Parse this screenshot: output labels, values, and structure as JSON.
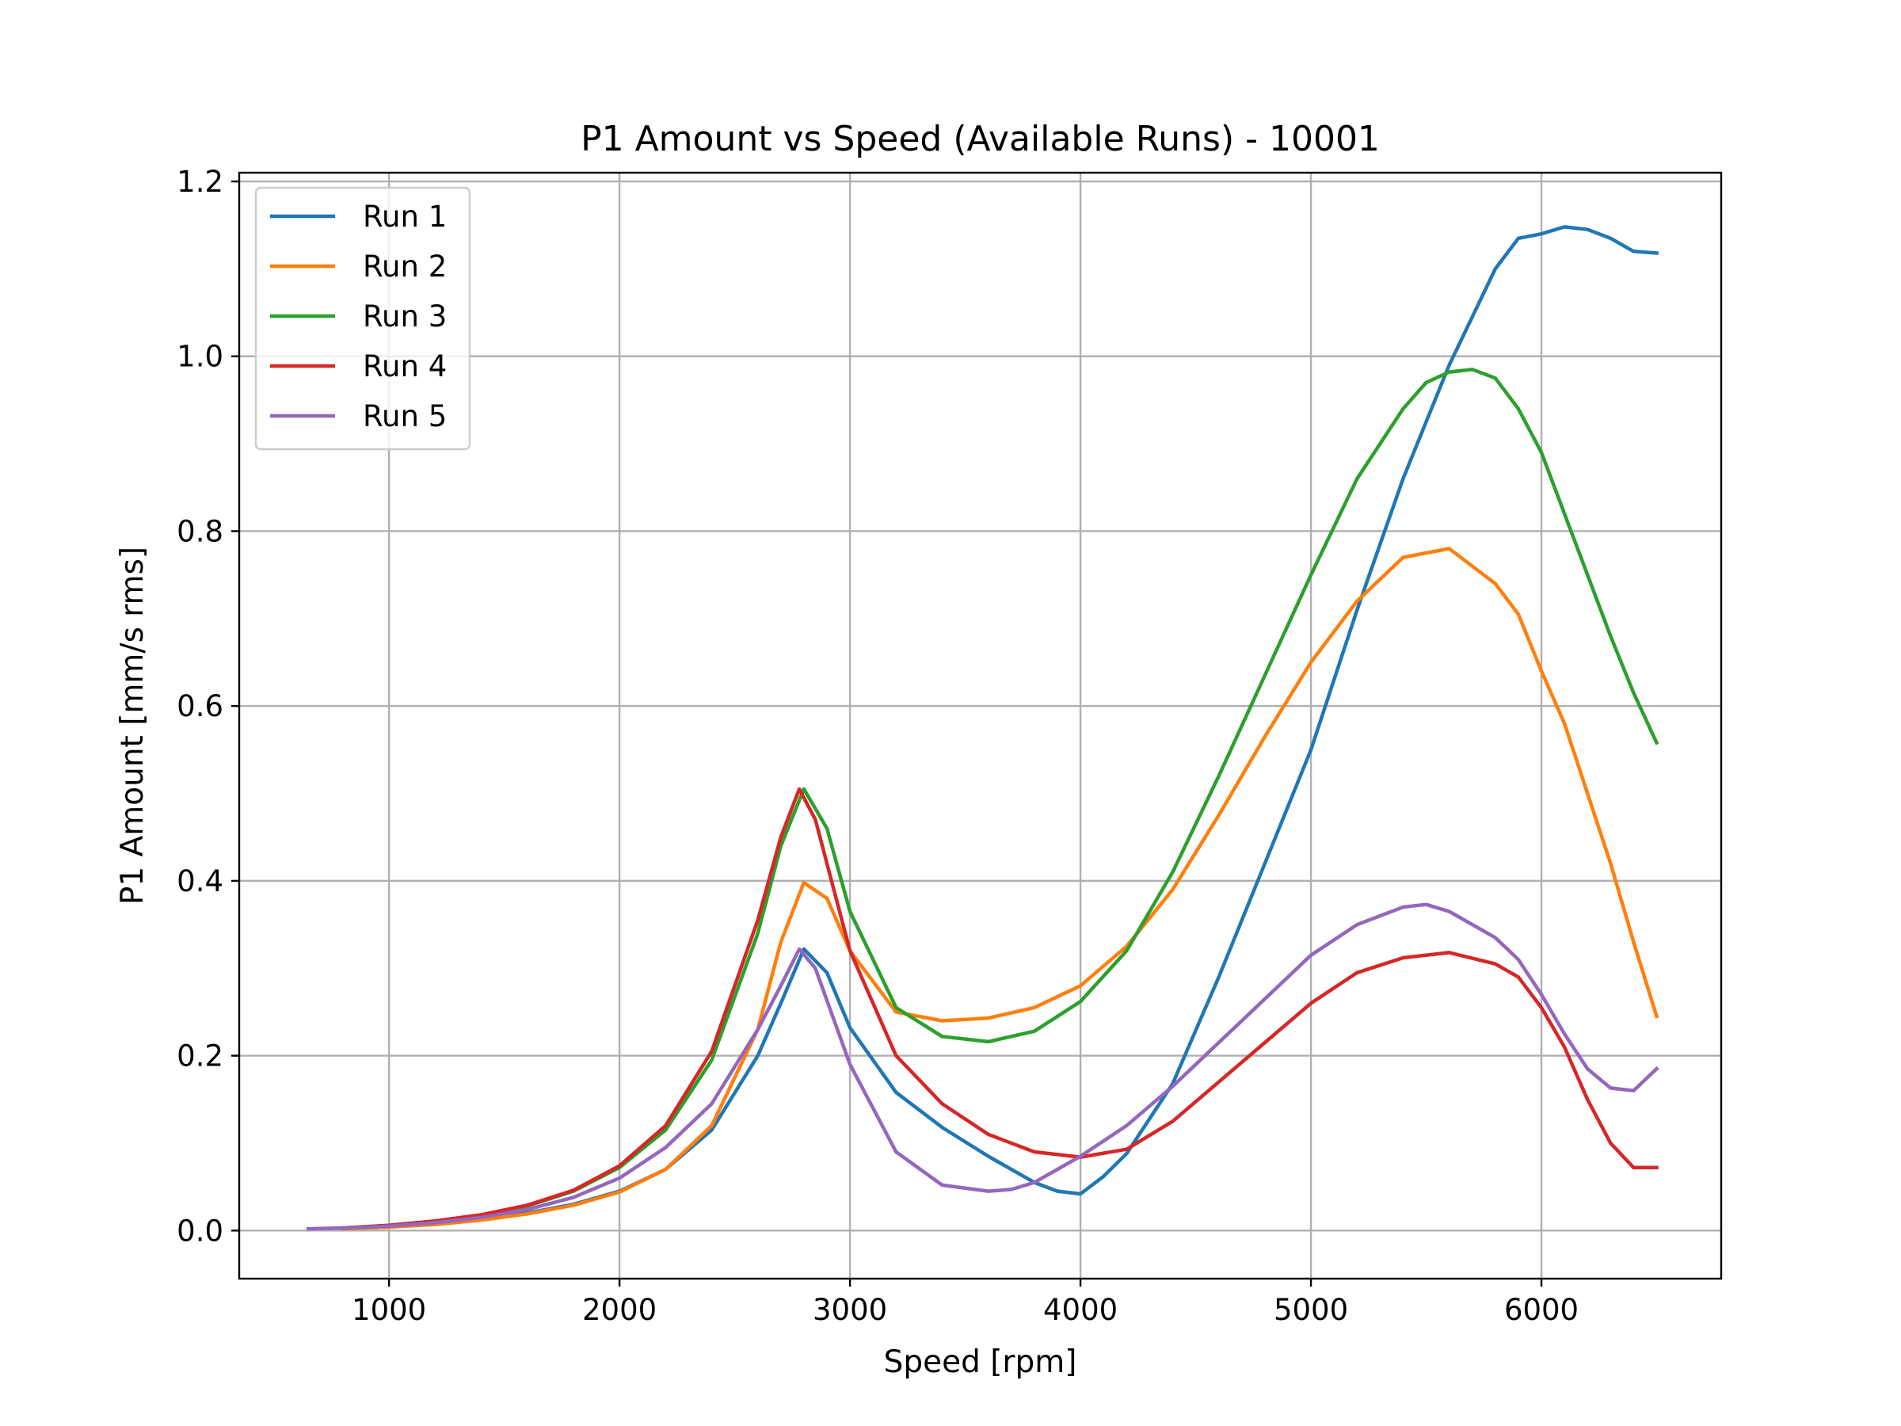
{
  "chart_data": {
    "type": "line",
    "title": "P1 Amount vs Speed (Available Runs) - 10001",
    "xlabel": "Speed [rpm]",
    "ylabel": "P1 Amount [mm/s rms]",
    "xlim": [
      350,
      6780
    ],
    "ylim": [
      -0.055,
      1.21
    ],
    "xticks": [
      1000,
      2000,
      3000,
      4000,
      5000,
      6000
    ],
    "yticks": [
      0.0,
      0.2,
      0.4,
      0.6,
      0.8,
      1.0,
      1.2
    ],
    "xtick_labels": [
      "1000",
      "2000",
      "3000",
      "4000",
      "5000",
      "6000"
    ],
    "ytick_labels": [
      "0.0",
      "0.2",
      "0.4",
      "0.6",
      "0.8",
      "1.0",
      "1.2"
    ],
    "grid": true,
    "legend_position": "top-left",
    "series": [
      {
        "name": "Run 1",
        "color": "#1f77b4",
        "x": [
          800,
          1000,
          1200,
          1400,
          1600,
          1800,
          2000,
          2200,
          2400,
          2600,
          2700,
          2800,
          2900,
          3000,
          3200,
          3400,
          3600,
          3800,
          3900,
          4000,
          4100,
          4200,
          4400,
          4600,
          4800,
          5000,
          5200,
          5400,
          5600,
          5800,
          5900,
          6000,
          6100,
          6200,
          6300,
          6400,
          6500
        ],
        "y": [
          0.002,
          0.004,
          0.008,
          0.013,
          0.02,
          0.03,
          0.045,
          0.07,
          0.115,
          0.2,
          0.26,
          0.322,
          0.295,
          0.232,
          0.158,
          0.118,
          0.085,
          0.055,
          0.045,
          0.042,
          0.062,
          0.088,
          0.168,
          0.29,
          0.42,
          0.55,
          0.71,
          0.86,
          0.99,
          1.1,
          1.135,
          1.14,
          1.148,
          1.145,
          1.135,
          1.12,
          1.118
        ]
      },
      {
        "name": "Run 2",
        "color": "#ff7f0e",
        "x": [
          800,
          1000,
          1200,
          1400,
          1600,
          1800,
          2000,
          2200,
          2400,
          2600,
          2700,
          2800,
          2900,
          3000,
          3200,
          3400,
          3600,
          3800,
          4000,
          4200,
          4400,
          4600,
          4800,
          5000,
          5200,
          5400,
          5600,
          5800,
          5900,
          6000,
          6100,
          6200,
          6300,
          6400,
          6500
        ],
        "y": [
          0.002,
          0.004,
          0.007,
          0.012,
          0.019,
          0.029,
          0.044,
          0.07,
          0.12,
          0.23,
          0.33,
          0.398,
          0.38,
          0.32,
          0.25,
          0.24,
          0.243,
          0.255,
          0.28,
          0.325,
          0.39,
          0.475,
          0.565,
          0.65,
          0.72,
          0.77,
          0.78,
          0.74,
          0.705,
          0.64,
          0.58,
          0.5,
          0.42,
          0.33,
          0.245
        ]
      },
      {
        "name": "Run 3",
        "color": "#2ca02c",
        "x": [
          800,
          1000,
          1200,
          1400,
          1600,
          1800,
          2000,
          2200,
          2400,
          2600,
          2700,
          2800,
          2900,
          3000,
          3200,
          3400,
          3600,
          3800,
          4000,
          4200,
          4400,
          4600,
          4800,
          5000,
          5200,
          5400,
          5500,
          5600,
          5700,
          5800,
          5900,
          6000,
          6100,
          6200,
          6300,
          6400,
          6500
        ],
        "y": [
          0.003,
          0.006,
          0.011,
          0.017,
          0.028,
          0.045,
          0.072,
          0.115,
          0.195,
          0.34,
          0.44,
          0.505,
          0.46,
          0.365,
          0.255,
          0.222,
          0.216,
          0.228,
          0.262,
          0.32,
          0.41,
          0.52,
          0.635,
          0.75,
          0.86,
          0.94,
          0.97,
          0.982,
          0.985,
          0.975,
          0.94,
          0.89,
          0.82,
          0.75,
          0.68,
          0.615,
          0.558
        ]
      },
      {
        "name": "Run 4",
        "color": "#d62728",
        "x": [
          800,
          1000,
          1200,
          1400,
          1600,
          1800,
          2000,
          2200,
          2400,
          2600,
          2700,
          2780,
          2850,
          3000,
          3200,
          3400,
          3600,
          3800,
          4000,
          4200,
          4400,
          4600,
          4800,
          5000,
          5200,
          5400,
          5600,
          5800,
          5900,
          6000,
          6100,
          6200,
          6300,
          6400,
          6500
        ],
        "y": [
          0.003,
          0.006,
          0.011,
          0.018,
          0.029,
          0.046,
          0.074,
          0.12,
          0.205,
          0.355,
          0.45,
          0.505,
          0.47,
          0.32,
          0.2,
          0.145,
          0.11,
          0.09,
          0.084,
          0.093,
          0.125,
          0.17,
          0.215,
          0.26,
          0.295,
          0.312,
          0.318,
          0.305,
          0.29,
          0.255,
          0.21,
          0.15,
          0.1,
          0.072,
          0.072
        ]
      },
      {
        "name": "Run 5",
        "color": "#9467bd",
        "x": [
          650,
          800,
          1000,
          1200,
          1400,
          1600,
          1800,
          2000,
          2200,
          2400,
          2600,
          2700,
          2780,
          2850,
          3000,
          3200,
          3400,
          3600,
          3700,
          3800,
          4000,
          4200,
          4400,
          4600,
          4800,
          5000,
          5200,
          5400,
          5500,
          5600,
          5800,
          5900,
          6000,
          6100,
          6200,
          6300,
          6400,
          6500
        ],
        "y": [
          0.002,
          0.003,
          0.005,
          0.009,
          0.015,
          0.024,
          0.038,
          0.06,
          0.095,
          0.145,
          0.23,
          0.28,
          0.322,
          0.3,
          0.19,
          0.09,
          0.052,
          0.045,
          0.047,
          0.055,
          0.085,
          0.12,
          0.165,
          0.215,
          0.265,
          0.315,
          0.35,
          0.37,
          0.373,
          0.365,
          0.335,
          0.31,
          0.27,
          0.225,
          0.185,
          0.163,
          0.16,
          0.185
        ]
      }
    ]
  }
}
